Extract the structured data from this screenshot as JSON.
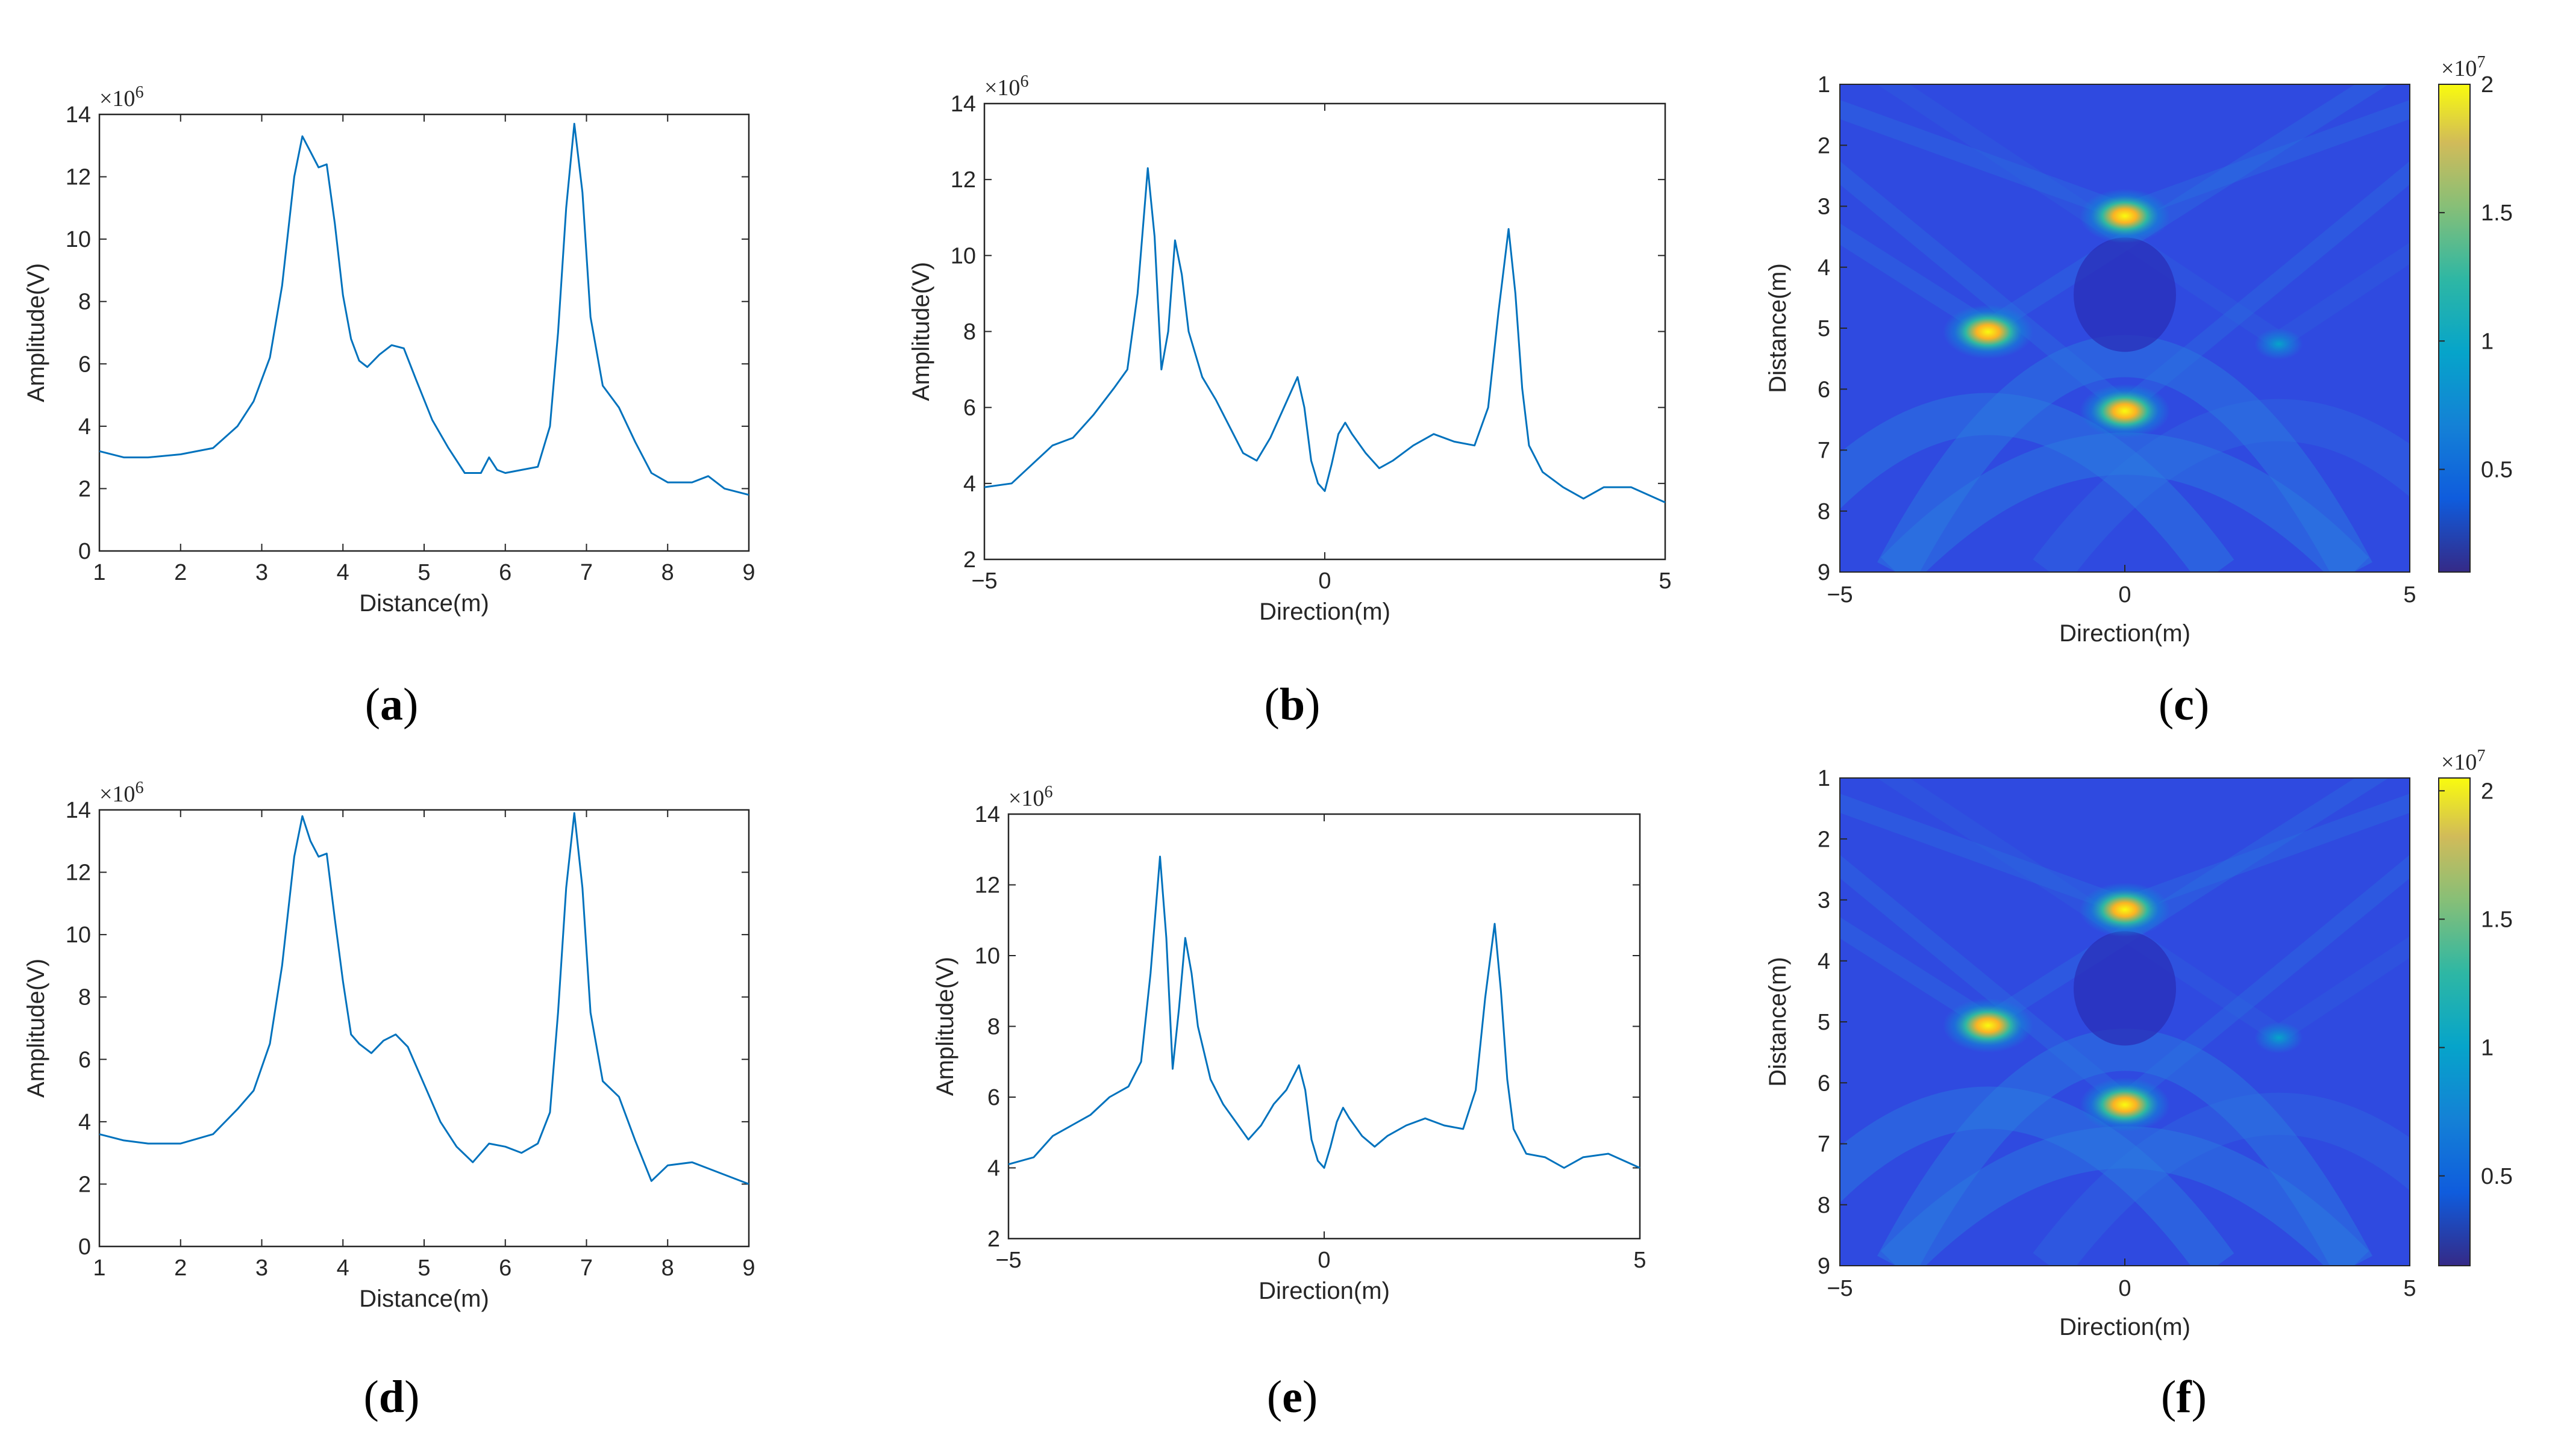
{
  "chart_data": [
    {
      "panel": "a",
      "type": "line",
      "xlabel": "Distance(m)",
      "ylabel": "Amplitude(V)",
      "y_multiplier": "×10",
      "y_multiplier_exp": "6",
      "xlim": [
        1,
        9
      ],
      "ylim": [
        0,
        14
      ],
      "xticks": [
        1,
        2,
        3,
        4,
        5,
        6,
        7,
        8,
        9
      ],
      "yticks": [
        0,
        2,
        4,
        6,
        8,
        10,
        12,
        14
      ],
      "color": "#0072BD",
      "series": [
        {
          "x": [
            1.0,
            1.3,
            1.6,
            2.0,
            2.4,
            2.7,
            2.9,
            3.1,
            3.25,
            3.4,
            3.5,
            3.6,
            3.7,
            3.8,
            3.9,
            4.0,
            4.1,
            4.2,
            4.3,
            4.45,
            4.6,
            4.75,
            4.9,
            5.1,
            5.3,
            5.5,
            5.7,
            5.8,
            5.9,
            6.0,
            6.2,
            6.4,
            6.55,
            6.65,
            6.75,
            6.85,
            6.95,
            7.05,
            7.2,
            7.4,
            7.6,
            7.8,
            8.0,
            8.3,
            8.5,
            8.7,
            9.0
          ],
          "y": [
            3.2,
            3.0,
            3.0,
            3.1,
            3.3,
            4.0,
            4.8,
            6.2,
            8.5,
            12.0,
            13.3,
            12.8,
            12.3,
            12.4,
            10.5,
            8.2,
            6.8,
            6.1,
            5.9,
            6.3,
            6.6,
            6.5,
            5.5,
            4.2,
            3.3,
            2.5,
            2.5,
            3.0,
            2.6,
            2.5,
            2.6,
            2.7,
            4.0,
            7.0,
            11.0,
            13.7,
            11.5,
            7.5,
            5.3,
            4.6,
            3.5,
            2.5,
            2.2,
            2.2,
            2.4,
            2.0,
            1.8
          ]
        }
      ]
    },
    {
      "panel": "b",
      "type": "line",
      "xlabel": "Direction(m)",
      "ylabel": "Amplitude(V)",
      "y_multiplier": "×10",
      "y_multiplier_exp": "6",
      "xlim": [
        -5,
        5
      ],
      "ylim": [
        2,
        14
      ],
      "xticks": [
        -5,
        0,
        5
      ],
      "yticks": [
        2,
        4,
        6,
        8,
        10,
        12,
        14
      ],
      "color": "#0072BD",
      "series": [
        {
          "x": [
            -5.0,
            -4.6,
            -4.3,
            -4.0,
            -3.7,
            -3.4,
            -3.1,
            -2.9,
            -2.75,
            -2.6,
            -2.5,
            -2.4,
            -2.3,
            -2.2,
            -2.1,
            -2.0,
            -1.8,
            -1.6,
            -1.4,
            -1.2,
            -1.0,
            -0.8,
            -0.6,
            -0.4,
            -0.3,
            -0.2,
            -0.1,
            0.0,
            0.1,
            0.2,
            0.3,
            0.4,
            0.6,
            0.8,
            1.0,
            1.3,
            1.6,
            1.9,
            2.2,
            2.4,
            2.55,
            2.7,
            2.8,
            2.9,
            3.0,
            3.2,
            3.5,
            3.8,
            4.1,
            4.5,
            5.0
          ],
          "y": [
            3.9,
            4.0,
            4.5,
            5.0,
            5.2,
            5.8,
            6.5,
            7.0,
            9.0,
            12.3,
            10.5,
            7.0,
            8.0,
            10.4,
            9.5,
            8.0,
            6.8,
            6.2,
            5.5,
            4.8,
            4.6,
            5.2,
            6.0,
            6.8,
            6.0,
            4.6,
            4.0,
            3.8,
            4.5,
            5.3,
            5.6,
            5.3,
            4.8,
            4.4,
            4.6,
            5.0,
            5.3,
            5.1,
            5.0,
            6.0,
            8.5,
            10.7,
            9.0,
            6.5,
            5.0,
            4.3,
            3.9,
            3.6,
            3.9,
            3.9,
            3.5
          ]
        }
      ]
    },
    {
      "panel": "c",
      "type": "heatmap",
      "xlabel": "Direction(m)",
      "ylabel": "Distance(m)",
      "xlim": [
        -5,
        5
      ],
      "ylim": [
        1,
        9
      ],
      "xticks": [
        -5,
        0,
        5
      ],
      "yticks": [
        1,
        2,
        3,
        4,
        5,
        6,
        7,
        8,
        9
      ],
      "y_reversed": true,
      "colormap": "parula",
      "colorbar_multiplier": "×10",
      "colorbar_multiplier_exp": "7",
      "colorbar_ticks": [
        0.5,
        1,
        1.5,
        2
      ],
      "colorbar_ticks_text": [
        "0.5",
        "1",
        "1.5",
        "2"
      ],
      "color_range": [
        0.1,
        2.0
      ],
      "background_level": 0.3,
      "hotspots": [
        {
          "direction": -2.4,
          "distance": 5.0,
          "value": 1.9
        },
        {
          "direction": 0.0,
          "distance": 3.1,
          "value": 1.8
        },
        {
          "direction": 0.0,
          "distance": 6.3,
          "value": 2.0
        },
        {
          "direction": 2.7,
          "distance": 5.2,
          "value": 0.8
        }
      ]
    },
    {
      "panel": "d",
      "type": "line",
      "xlabel": "Distance(m)",
      "ylabel": "Amplitude(V)",
      "y_multiplier": "×10",
      "y_multiplier_exp": "6",
      "xlim": [
        1,
        9
      ],
      "ylim": [
        0,
        14
      ],
      "xticks": [
        1,
        2,
        3,
        4,
        5,
        6,
        7,
        8,
        9
      ],
      "yticks": [
        0,
        2,
        4,
        6,
        8,
        10,
        12,
        14
      ],
      "color": "#0072BD",
      "series": [
        {
          "x": [
            1.0,
            1.3,
            1.6,
            2.0,
            2.4,
            2.7,
            2.9,
            3.1,
            3.25,
            3.4,
            3.5,
            3.6,
            3.7,
            3.8,
            3.9,
            4.0,
            4.1,
            4.2,
            4.35,
            4.5,
            4.65,
            4.8,
            5.0,
            5.2,
            5.4,
            5.6,
            5.8,
            6.0,
            6.2,
            6.4,
            6.55,
            6.65,
            6.75,
            6.85,
            6.95,
            7.05,
            7.2,
            7.4,
            7.6,
            7.8,
            8.0,
            8.3,
            8.5,
            8.7,
            9.0
          ],
          "y": [
            3.6,
            3.4,
            3.3,
            3.3,
            3.6,
            4.4,
            5.0,
            6.5,
            9.0,
            12.5,
            13.8,
            13.0,
            12.5,
            12.6,
            10.5,
            8.5,
            6.8,
            6.5,
            6.2,
            6.6,
            6.8,
            6.4,
            5.2,
            4.0,
            3.2,
            2.7,
            3.3,
            3.2,
            3.0,
            3.3,
            4.3,
            7.5,
            11.5,
            13.9,
            11.5,
            7.5,
            5.3,
            4.8,
            3.4,
            2.1,
            2.6,
            2.7,
            2.5,
            2.3,
            2.0
          ]
        }
      ]
    },
    {
      "panel": "e",
      "type": "line",
      "xlabel": "Direction(m)",
      "ylabel": "Amplitude(V)",
      "y_multiplier": "×10",
      "y_multiplier_exp": "6",
      "xlim": [
        -5,
        5
      ],
      "ylim": [
        2,
        14
      ],
      "xticks": [
        -5,
        0,
        5
      ],
      "yticks": [
        2,
        4,
        6,
        8,
        10,
        12,
        14
      ],
      "color": "#0072BD",
      "series": [
        {
          "x": [
            -5.0,
            -4.6,
            -4.3,
            -4.0,
            -3.7,
            -3.4,
            -3.1,
            -2.9,
            -2.75,
            -2.6,
            -2.5,
            -2.4,
            -2.3,
            -2.2,
            -2.1,
            -2.0,
            -1.8,
            -1.6,
            -1.4,
            -1.2,
            -1.0,
            -0.8,
            -0.6,
            -0.4,
            -0.3,
            -0.2,
            -0.1,
            0.0,
            0.1,
            0.2,
            0.3,
            0.4,
            0.6,
            0.8,
            1.0,
            1.3,
            1.6,
            1.9,
            2.2,
            2.4,
            2.55,
            2.7,
            2.8,
            2.9,
            3.0,
            3.2,
            3.5,
            3.8,
            4.1,
            4.5,
            5.0
          ],
          "y": [
            4.1,
            4.3,
            4.9,
            5.2,
            5.5,
            6.0,
            6.3,
            7.0,
            9.5,
            12.8,
            10.5,
            6.8,
            8.5,
            10.5,
            9.5,
            8.0,
            6.5,
            5.8,
            5.3,
            4.8,
            5.2,
            5.8,
            6.2,
            6.9,
            6.2,
            4.8,
            4.2,
            4.0,
            4.6,
            5.3,
            5.7,
            5.4,
            4.9,
            4.6,
            4.9,
            5.2,
            5.4,
            5.2,
            5.1,
            6.2,
            8.8,
            10.9,
            9.0,
            6.5,
            5.1,
            4.4,
            4.3,
            4.0,
            4.3,
            4.4,
            4.0
          ]
        }
      ]
    },
    {
      "panel": "f",
      "type": "heatmap",
      "xlabel": "Direction(m)",
      "ylabel": "Distance(m)",
      "xlim": [
        -5,
        5
      ],
      "ylim": [
        1,
        9
      ],
      "xticks": [
        -5,
        0,
        5
      ],
      "yticks": [
        1,
        2,
        3,
        4,
        5,
        6,
        7,
        8,
        9
      ],
      "y_reversed": true,
      "colormap": "parula",
      "colorbar_multiplier": "×10",
      "colorbar_multiplier_exp": "7",
      "colorbar_ticks": [
        0.5,
        1,
        1.5,
        2
      ],
      "colorbar_ticks_text": [
        "0.5",
        "1",
        "1.5",
        "2"
      ],
      "color_range": [
        0.15,
        2.05
      ],
      "background_level": 0.3,
      "hotspots": [
        {
          "direction": -2.4,
          "distance": 5.0,
          "value": 1.9
        },
        {
          "direction": 0.0,
          "distance": 3.1,
          "value": 1.8
        },
        {
          "direction": 0.0,
          "distance": 6.3,
          "value": 2.05
        },
        {
          "direction": 2.7,
          "distance": 5.2,
          "value": 0.8
        }
      ]
    }
  ],
  "labels": {
    "a": {
      "open": "(",
      "letter": "a",
      "close": ")"
    },
    "b": {
      "open": "(",
      "letter": "b",
      "close": ")"
    },
    "c": {
      "open": "(",
      "letter": "c",
      "close": ")"
    },
    "d": {
      "open": "(",
      "letter": "d",
      "close": ")"
    },
    "e": {
      "open": "(",
      "letter": "e",
      "close": ")"
    },
    "f": {
      "open": "(",
      "letter": "f",
      "close": ")"
    }
  }
}
